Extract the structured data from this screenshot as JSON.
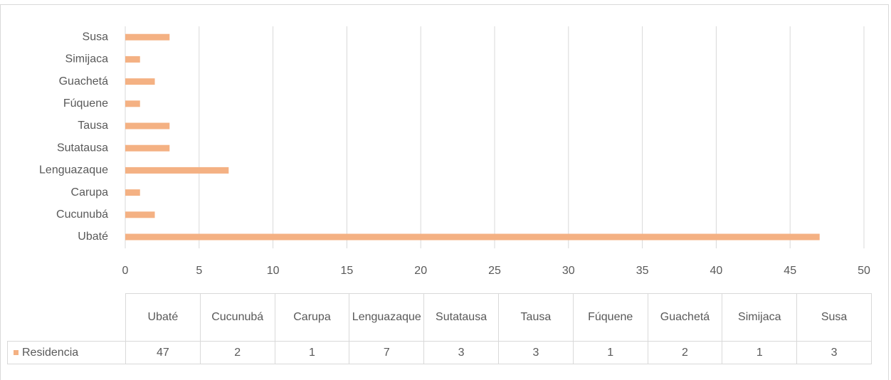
{
  "chart_data": {
    "type": "bar",
    "orientation": "horizontal",
    "categories": [
      "Ubaté",
      "Cucunubá",
      "Carupa",
      "Lenguazaque",
      "Sutatausa",
      "Tausa",
      "Fúquene",
      "Guachetá",
      "Simijaca",
      "Susa"
    ],
    "series": [
      {
        "name": "Residencia",
        "color": "#f4b183",
        "values": [
          47,
          2,
          1,
          7,
          3,
          3,
          1,
          2,
          1,
          3
        ]
      }
    ],
    "xlim": [
      0,
      50
    ],
    "xticks": [
      0,
      5,
      10,
      15,
      20,
      25,
      30,
      35,
      40,
      45,
      50
    ],
    "grid": true,
    "data_table": true
  }
}
